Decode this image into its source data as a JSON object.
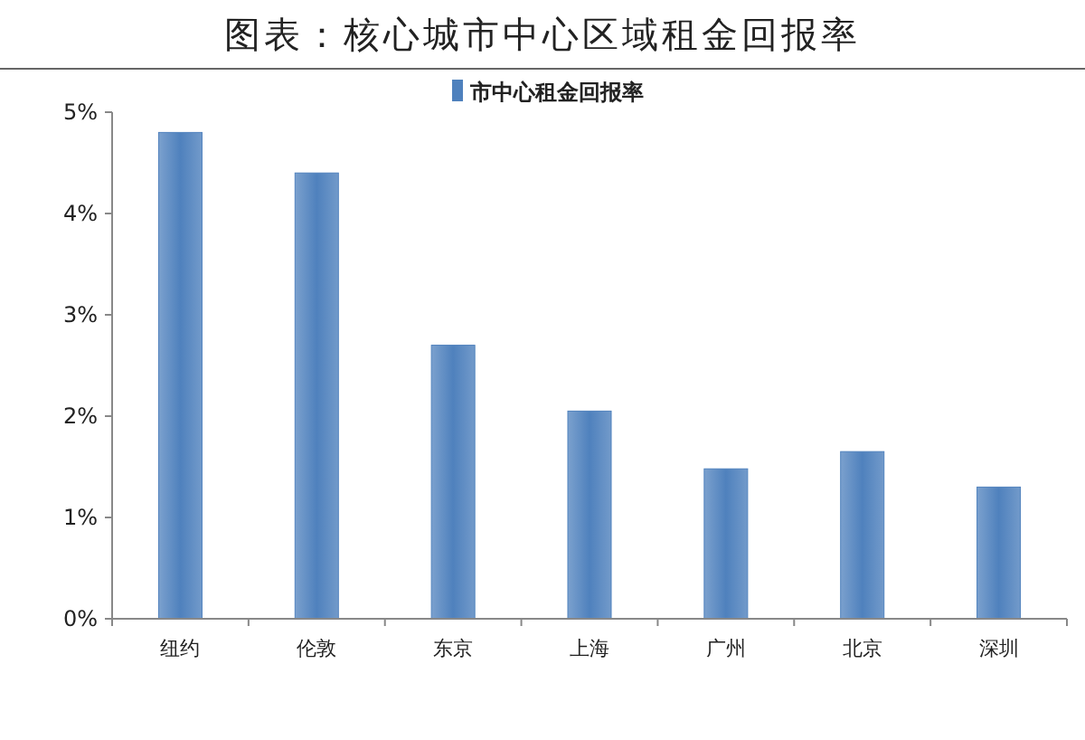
{
  "chart_data": {
    "type": "bar",
    "title": "图表：核心城市中心区域租金回报率",
    "categories": [
      "纽约",
      "伦敦",
      "东京",
      "上海",
      "广州",
      "北京",
      "深圳"
    ],
    "series": [
      {
        "name": "市中心租金回报率",
        "color": "#4f81bd",
        "values": [
          4.8,
          4.4,
          2.7,
          2.05,
          1.48,
          1.65,
          1.3
        ]
      }
    ],
    "ylim": [
      0,
      5
    ],
    "yticks": [
      {
        "value": 0,
        "label": "0%"
      },
      {
        "value": 1,
        "label": "1%"
      },
      {
        "value": 2,
        "label": "2%"
      },
      {
        "value": 3,
        "label": "3%"
      },
      {
        "value": 4,
        "label": "4%"
      },
      {
        "value": 5,
        "label": "5%"
      }
    ],
    "grid": false,
    "legend": "top"
  }
}
